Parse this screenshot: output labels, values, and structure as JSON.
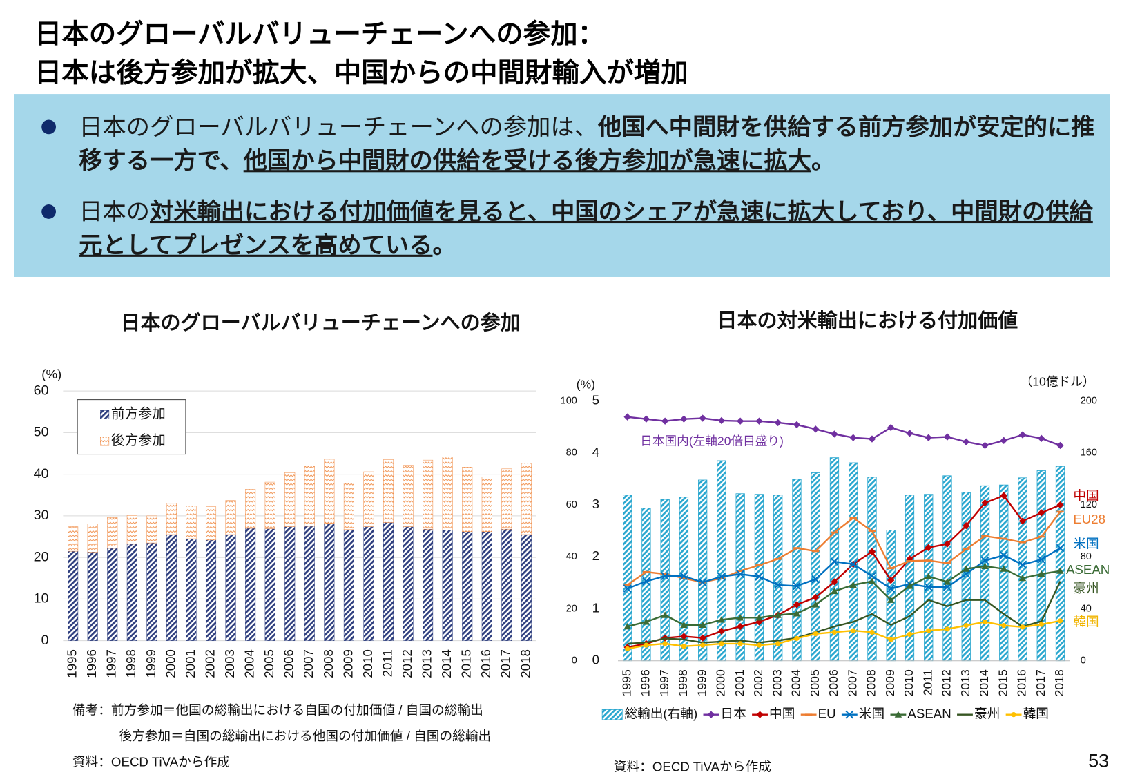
{
  "header": {
    "title_lines": [
      "日本のグローバルバリューチェーンへの参加：",
      "日本は後方参加が拡大、中国からの中間財輸入が増加"
    ]
  },
  "bullets": [
    {
      "runs": [
        {
          "text": "日本のグローバルバリューチェーンへの参加は、",
          "style": "normal"
        },
        {
          "text": "他国へ中間財を供給する前方参加が安定的に推移する一方で、",
          "style": "bold"
        },
        {
          "text": "他国から中間財の供給を受ける後方参加が急速に拡大",
          "style": "bold-underline"
        },
        {
          "text": "。",
          "style": "bold"
        }
      ]
    },
    {
      "runs": [
        {
          "text": "日本の",
          "style": "normal"
        },
        {
          "text": "対米輸出における付加価値を見ると、中国のシェアが急速に拡大しており、中間財の供給元としてプレゼンスを高めている",
          "style": "bold-underline"
        },
        {
          "text": "。",
          "style": "bold"
        }
      ]
    }
  ],
  "chart_data": [
    {
      "type": "bar",
      "stacked": true,
      "title": "日本のグローバルバリューチェーンへの参加",
      "y_label": "(%)",
      "categories": [
        "1995",
        "1996",
        "1997",
        "1998",
        "1999",
        "2000",
        "2001",
        "2002",
        "2003",
        "2004",
        "2005",
        "2006",
        "2007",
        "2008",
        "2009",
        "2010",
        "2011",
        "2012",
        "2013",
        "2014",
        "2015",
        "2016",
        "2017",
        "2018"
      ],
      "series": [
        {
          "name": "前方参加",
          "color": "#2f3f7f",
          "pattern": "hatch",
          "values": [
            21.5,
            21.3,
            22.2,
            23.2,
            23.5,
            25.5,
            24.5,
            24.2,
            25.5,
            27.0,
            26.9,
            27.4,
            27.5,
            28.2,
            26.7,
            27.4,
            28.4,
            27.4,
            26.8,
            26.6,
            26.2,
            26.2,
            26.8,
            25.5
          ]
        },
        {
          "name": "後方参加",
          "color": "#f08c46",
          "pattern": "zigzag",
          "values": [
            5.9,
            6.8,
            7.4,
            6.9,
            6.5,
            7.5,
            7.9,
            8.0,
            8.2,
            9.4,
            11.2,
            13.0,
            14.5,
            15.4,
            11.2,
            13.2,
            15.1,
            14.8,
            16.6,
            17.6,
            15.5,
            13.2,
            14.5,
            17.2
          ]
        }
      ],
      "ylim": [
        0,
        60
      ],
      "yticks": [
        0,
        10,
        20,
        30,
        40,
        50,
        60
      ],
      "grid": true,
      "legend": "upper-left"
    },
    {
      "type": "combo",
      "title": "日本の対米輸出における付加価値",
      "y_label": "(%)",
      "y2_label": "（10億ドル）",
      "categories": [
        "1995",
        "1996",
        "1997",
        "1998",
        "1999",
        "2000",
        "2001",
        "2002",
        "2003",
        "2004",
        "2005",
        "2006",
        "2007",
        "2008",
        "2009",
        "2010",
        "2011",
        "2012",
        "2013",
        "2014",
        "2015",
        "2016",
        "2017",
        "2018"
      ],
      "ylim": [
        0,
        5
      ],
      "yticks": [
        0,
        1,
        2,
        3,
        4,
        5
      ],
      "y3lim": [
        0,
        100
      ],
      "y3ticks": [
        0,
        20,
        40,
        60,
        80,
        100
      ],
      "y2lim": [
        0,
        200
      ],
      "y2ticks": [
        0,
        40,
        80,
        120,
        160,
        200
      ],
      "grid": false,
      "legend": "bottom",
      "series": [
        {
          "name": "総輸出(右軸)",
          "type": "bar",
          "axis": "y2",
          "color": "#2aa7cf",
          "pattern": "hatch",
          "values": [
            127.6,
            117.7,
            124.3,
            126.0,
            139.2,
            154.1,
            128.7,
            128.2,
            127.6,
            139.8,
            144.8,
            156.4,
            152.5,
            141.4,
            100.6,
            127.6,
            128.2,
            142.5,
            129.8,
            134.8,
            135.4,
            140.9,
            146.4,
            149.7
          ]
        },
        {
          "name": "日本",
          "type": "line",
          "axis": "y3",
          "color": "#7030a0",
          "marker": "diamond",
          "values": [
            93.9,
            93.1,
            92.3,
            93.1,
            93.4,
            92.5,
            92.3,
            92.3,
            91.7,
            90.9,
            89.2,
            87.3,
            85.9,
            85.4,
            89.8,
            87.6,
            85.9,
            86.2,
            84.3,
            82.9,
            84.8,
            87.0,
            85.6,
            82.9
          ]
        },
        {
          "name": "中国",
          "type": "line",
          "color": "#c00000",
          "marker": "diamond",
          "values": [
            0.26,
            0.33,
            0.44,
            0.47,
            0.44,
            0.57,
            0.66,
            0.75,
            0.88,
            1.08,
            1.22,
            1.52,
            1.86,
            2.1,
            1.55,
            1.96,
            2.18,
            2.25,
            2.6,
            3.04,
            3.18,
            2.69,
            2.85,
            3.0
          ]
        },
        {
          "name": "EU",
          "type": "line",
          "color": "#ed7d31",
          "marker": "dash",
          "values": [
            1.46,
            1.71,
            1.67,
            1.59,
            1.51,
            1.59,
            1.73,
            1.84,
            1.96,
            2.17,
            2.11,
            2.47,
            2.75,
            2.5,
            1.78,
            1.92,
            1.93,
            1.88,
            2.15,
            2.4,
            2.35,
            2.28,
            2.39,
            2.87
          ]
        },
        {
          "name": "米国",
          "type": "line",
          "color": "#0070c0",
          "marker": "x",
          "values": [
            1.39,
            1.53,
            1.63,
            1.63,
            1.51,
            1.62,
            1.67,
            1.62,
            1.46,
            1.44,
            1.57,
            1.91,
            1.86,
            1.63,
            1.39,
            1.48,
            1.42,
            1.42,
            1.67,
            1.93,
            2.03,
            1.85,
            1.95,
            2.17
          ]
        },
        {
          "name": "ASEAN",
          "type": "line",
          "color": "#3a6b35",
          "marker": "triangle",
          "values": [
            0.66,
            0.75,
            0.88,
            0.69,
            0.69,
            0.79,
            0.83,
            0.83,
            0.88,
            0.91,
            1.08,
            1.34,
            1.46,
            1.53,
            1.17,
            1.44,
            1.62,
            1.52,
            1.77,
            1.82,
            1.77,
            1.59,
            1.67,
            1.73
          ]
        },
        {
          "name": "豪州",
          "type": "line",
          "color": "#375623",
          "marker": "none",
          "values": [
            0.33,
            0.35,
            0.43,
            0.41,
            0.35,
            0.37,
            0.39,
            0.35,
            0.39,
            0.44,
            0.55,
            0.66,
            0.75,
            0.9,
            0.69,
            0.86,
            1.17,
            1.05,
            1.17,
            1.17,
            0.9,
            0.66,
            0.76,
            1.53
          ]
        },
        {
          "name": "韓国",
          "type": "line",
          "color": "#ffc000",
          "marker": "circle",
          "values": [
            0.23,
            0.3,
            0.33,
            0.28,
            0.3,
            0.33,
            0.33,
            0.3,
            0.33,
            0.43,
            0.52,
            0.55,
            0.58,
            0.55,
            0.41,
            0.51,
            0.58,
            0.61,
            0.68,
            0.75,
            0.68,
            0.65,
            0.7,
            0.77
          ]
        }
      ],
      "annotations": [
        {
          "text": "日本国内(左軸20倍目盛り)",
          "color": "#7030a0"
        },
        {
          "text": "中国",
          "color": "#c00000"
        },
        {
          "text": "EU28",
          "color": "#ed7d31"
        },
        {
          "text": "米国",
          "color": "#0070c0"
        },
        {
          "text": "ASEAN",
          "color": "#3a6b35"
        },
        {
          "text": "豪州",
          "color": "#375623"
        },
        {
          "text": "韓国",
          "color": "#f0b400"
        }
      ]
    }
  ],
  "notes": [
    "備考：前方参加＝他国の総輸出における自国の付加価値 / 自国の総輸出",
    "後方参加＝自国の総輸出における他国の付加価値 / 自国の総輸出"
  ],
  "sources": [
    "資料：OECD TiVAから作成",
    "資料：OECD TiVAから作成"
  ],
  "page_number": "53"
}
